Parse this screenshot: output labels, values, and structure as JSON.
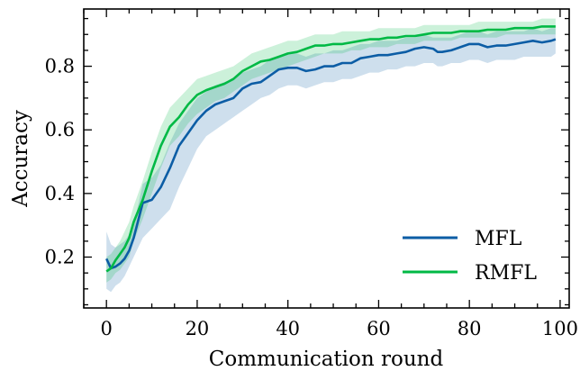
{
  "chart_data": {
    "type": "line",
    "title": "",
    "xlabel": "Communication round",
    "ylabel": "Accuracy",
    "xlim": [
      -5,
      102
    ],
    "ylim": [
      0.04,
      0.98
    ],
    "xticks": [
      0,
      20,
      40,
      60,
      80,
      100
    ],
    "yticks": [
      0.2,
      0.4,
      0.6,
      0.8
    ],
    "xtick_labels": [
      "0",
      "20",
      "40",
      "60",
      "80",
      "100"
    ],
    "ytick_labels": [
      "0.2",
      "0.4",
      "0.6",
      "0.8"
    ],
    "legend_position": "lower-right",
    "grid": false,
    "series": [
      {
        "name": "MFL",
        "color": "#0C5DA5",
        "band_color": "#0C5DA5",
        "x": [
          0,
          1,
          2,
          3,
          4,
          5,
          6,
          8,
          10,
          12,
          14,
          16,
          18,
          20,
          22,
          24,
          26,
          28,
          30,
          32,
          34,
          36,
          38,
          40,
          42,
          44,
          46,
          48,
          50,
          52,
          54,
          56,
          58,
          60,
          62,
          64,
          66,
          68,
          70,
          72,
          73,
          74,
          76,
          78,
          80,
          82,
          84,
          86,
          88,
          90,
          92,
          94,
          96,
          98,
          99
        ],
        "values": [
          0.195,
          0.165,
          0.17,
          0.18,
          0.195,
          0.22,
          0.26,
          0.37,
          0.38,
          0.42,
          0.48,
          0.55,
          0.59,
          0.63,
          0.66,
          0.68,
          0.69,
          0.7,
          0.73,
          0.745,
          0.75,
          0.77,
          0.79,
          0.795,
          0.795,
          0.785,
          0.79,
          0.8,
          0.8,
          0.81,
          0.81,
          0.825,
          0.83,
          0.835,
          0.835,
          0.84,
          0.845,
          0.855,
          0.86,
          0.855,
          0.845,
          0.845,
          0.85,
          0.86,
          0.87,
          0.87,
          0.86,
          0.865,
          0.865,
          0.87,
          0.875,
          0.88,
          0.875,
          0.88,
          0.885
        ],
        "lower": [
          0.1,
          0.09,
          0.11,
          0.12,
          0.14,
          0.17,
          0.2,
          0.26,
          0.29,
          0.32,
          0.35,
          0.42,
          0.48,
          0.54,
          0.58,
          0.6,
          0.62,
          0.64,
          0.66,
          0.68,
          0.7,
          0.71,
          0.73,
          0.74,
          0.74,
          0.73,
          0.74,
          0.75,
          0.75,
          0.76,
          0.76,
          0.77,
          0.78,
          0.78,
          0.79,
          0.79,
          0.8,
          0.8,
          0.81,
          0.81,
          0.8,
          0.8,
          0.81,
          0.81,
          0.82,
          0.82,
          0.81,
          0.82,
          0.82,
          0.82,
          0.83,
          0.83,
          0.83,
          0.83,
          0.84
        ],
        "upper": [
          0.28,
          0.24,
          0.23,
          0.24,
          0.25,
          0.27,
          0.3,
          0.43,
          0.45,
          0.49,
          0.56,
          0.62,
          0.66,
          0.7,
          0.72,
          0.74,
          0.75,
          0.76,
          0.78,
          0.79,
          0.8,
          0.82,
          0.83,
          0.84,
          0.84,
          0.83,
          0.84,
          0.84,
          0.85,
          0.85,
          0.86,
          0.87,
          0.87,
          0.88,
          0.88,
          0.88,
          0.89,
          0.89,
          0.9,
          0.89,
          0.89,
          0.89,
          0.89,
          0.9,
          0.91,
          0.91,
          0.9,
          0.91,
          0.91,
          0.91,
          0.91,
          0.92,
          0.91,
          0.92,
          0.92
        ]
      },
      {
        "name": "RMFL",
        "color": "#00B945",
        "band_color": "#00B945",
        "x": [
          0,
          1,
          2,
          3,
          4,
          5,
          6,
          8,
          10,
          12,
          14,
          16,
          18,
          20,
          22,
          24,
          26,
          28,
          30,
          32,
          34,
          36,
          38,
          40,
          42,
          44,
          46,
          48,
          50,
          52,
          54,
          56,
          58,
          60,
          62,
          64,
          66,
          68,
          70,
          72,
          74,
          76,
          78,
          80,
          82,
          84,
          86,
          88,
          90,
          92,
          94,
          96,
          98,
          99
        ],
        "values": [
          0.155,
          0.165,
          0.19,
          0.21,
          0.23,
          0.26,
          0.31,
          0.38,
          0.47,
          0.55,
          0.61,
          0.64,
          0.68,
          0.71,
          0.725,
          0.735,
          0.745,
          0.76,
          0.785,
          0.8,
          0.815,
          0.82,
          0.83,
          0.84,
          0.845,
          0.855,
          0.865,
          0.865,
          0.87,
          0.87,
          0.875,
          0.88,
          0.885,
          0.885,
          0.89,
          0.89,
          0.895,
          0.895,
          0.9,
          0.905,
          0.905,
          0.905,
          0.91,
          0.91,
          0.91,
          0.915,
          0.915,
          0.915,
          0.92,
          0.92,
          0.92,
          0.925,
          0.925,
          0.925
        ],
        "lower": [
          0.12,
          0.13,
          0.15,
          0.16,
          0.18,
          0.2,
          0.25,
          0.32,
          0.4,
          0.48,
          0.55,
          0.58,
          0.62,
          0.65,
          0.67,
          0.69,
          0.7,
          0.72,
          0.74,
          0.76,
          0.77,
          0.78,
          0.79,
          0.8,
          0.81,
          0.82,
          0.83,
          0.84,
          0.84,
          0.84,
          0.85,
          0.85,
          0.86,
          0.86,
          0.86,
          0.87,
          0.87,
          0.87,
          0.88,
          0.88,
          0.88,
          0.88,
          0.89,
          0.89,
          0.89,
          0.89,
          0.89,
          0.9,
          0.9,
          0.9,
          0.9,
          0.9,
          0.9,
          0.9
        ],
        "upper": [
          0.2,
          0.21,
          0.23,
          0.25,
          0.28,
          0.31,
          0.36,
          0.44,
          0.53,
          0.61,
          0.67,
          0.7,
          0.73,
          0.76,
          0.77,
          0.78,
          0.79,
          0.8,
          0.82,
          0.84,
          0.85,
          0.86,
          0.87,
          0.88,
          0.88,
          0.89,
          0.9,
          0.9,
          0.9,
          0.91,
          0.91,
          0.91,
          0.91,
          0.92,
          0.92,
          0.92,
          0.92,
          0.92,
          0.93,
          0.93,
          0.93,
          0.93,
          0.93,
          0.93,
          0.94,
          0.94,
          0.94,
          0.94,
          0.94,
          0.94,
          0.94,
          0.95,
          0.95,
          0.95
        ]
      }
    ]
  }
}
